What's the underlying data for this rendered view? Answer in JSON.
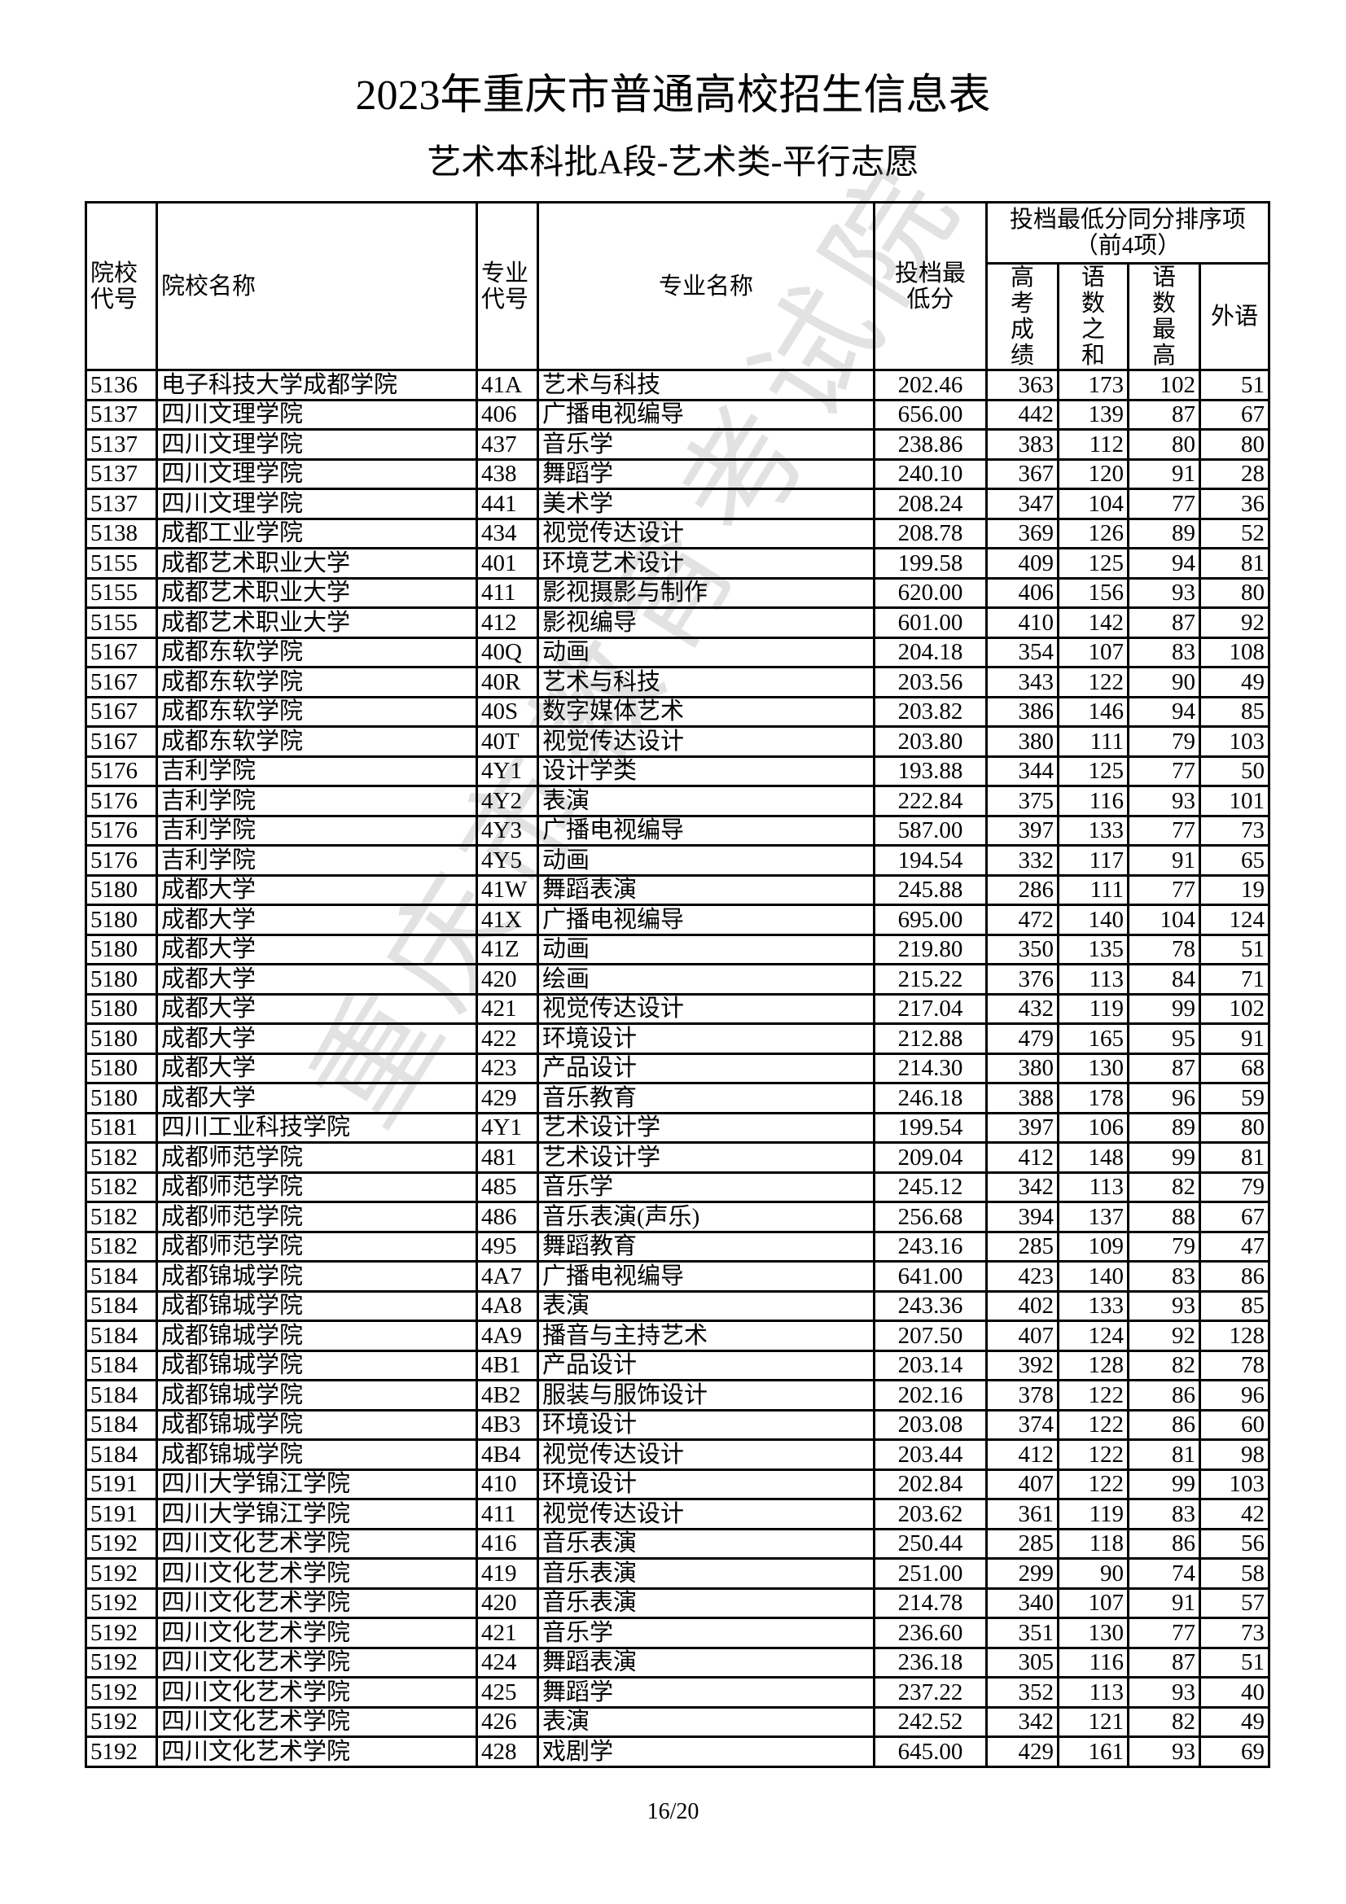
{
  "title": "2023年重庆市普通高校招生信息表",
  "subtitle": "艺术本科批A段-艺术类-平行志愿",
  "watermark": "重庆市教育考试院",
  "headers": {
    "school_code": "院校代号",
    "school_name": "院校名称",
    "major_code": "专业代号",
    "major_name": "专业名称",
    "min_score": "投档最低分",
    "tiebreak_group": "投档最低分同分排序项",
    "tiebreak_note": "（前4项）",
    "gaokao": "高考成绩",
    "chn_math_sum": "语数之和",
    "chn_math_max": "语数最高",
    "foreign": "外语"
  },
  "rows": [
    [
      "5136",
      "电子科技大学成都学院",
      "41A",
      "艺术与科技",
      "202.46",
      "363",
      "173",
      "102",
      "51"
    ],
    [
      "5137",
      "四川文理学院",
      "406",
      "广播电视编导",
      "656.00",
      "442",
      "139",
      "87",
      "67"
    ],
    [
      "5137",
      "四川文理学院",
      "437",
      "音乐学",
      "238.86",
      "383",
      "112",
      "80",
      "80"
    ],
    [
      "5137",
      "四川文理学院",
      "438",
      "舞蹈学",
      "240.10",
      "367",
      "120",
      "91",
      "28"
    ],
    [
      "5137",
      "四川文理学院",
      "441",
      "美术学",
      "208.24",
      "347",
      "104",
      "77",
      "36"
    ],
    [
      "5138",
      "成都工业学院",
      "434",
      "视觉传达设计",
      "208.78",
      "369",
      "126",
      "89",
      "52"
    ],
    [
      "5155",
      "成都艺术职业大学",
      "401",
      "环境艺术设计",
      "199.58",
      "409",
      "125",
      "94",
      "81"
    ],
    [
      "5155",
      "成都艺术职业大学",
      "411",
      "影视摄影与制作",
      "620.00",
      "406",
      "156",
      "93",
      "80"
    ],
    [
      "5155",
      "成都艺术职业大学",
      "412",
      "影视编导",
      "601.00",
      "410",
      "142",
      "87",
      "92"
    ],
    [
      "5167",
      "成都东软学院",
      "40Q",
      "动画",
      "204.18",
      "354",
      "107",
      "83",
      "108"
    ],
    [
      "5167",
      "成都东软学院",
      "40R",
      "艺术与科技",
      "203.56",
      "343",
      "122",
      "90",
      "49"
    ],
    [
      "5167",
      "成都东软学院",
      "40S",
      "数字媒体艺术",
      "203.82",
      "386",
      "146",
      "94",
      "85"
    ],
    [
      "5167",
      "成都东软学院",
      "40T",
      "视觉传达设计",
      "203.80",
      "380",
      "111",
      "79",
      "103"
    ],
    [
      "5176",
      "吉利学院",
      "4Y1",
      "设计学类",
      "193.88",
      "344",
      "125",
      "77",
      "50"
    ],
    [
      "5176",
      "吉利学院",
      "4Y2",
      "表演",
      "222.84",
      "375",
      "116",
      "93",
      "101"
    ],
    [
      "5176",
      "吉利学院",
      "4Y3",
      "广播电视编导",
      "587.00",
      "397",
      "133",
      "77",
      "73"
    ],
    [
      "5176",
      "吉利学院",
      "4Y5",
      "动画",
      "194.54",
      "332",
      "117",
      "91",
      "65"
    ],
    [
      "5180",
      "成都大学",
      "41W",
      "舞蹈表演",
      "245.88",
      "286",
      "111",
      "77",
      "19"
    ],
    [
      "5180",
      "成都大学",
      "41X",
      "广播电视编导",
      "695.00",
      "472",
      "140",
      "104",
      "124"
    ],
    [
      "5180",
      "成都大学",
      "41Z",
      "动画",
      "219.80",
      "350",
      "135",
      "78",
      "51"
    ],
    [
      "5180",
      "成都大学",
      "420",
      "绘画",
      "215.22",
      "376",
      "113",
      "84",
      "71"
    ],
    [
      "5180",
      "成都大学",
      "421",
      "视觉传达设计",
      "217.04",
      "432",
      "119",
      "99",
      "102"
    ],
    [
      "5180",
      "成都大学",
      "422",
      "环境设计",
      "212.88",
      "479",
      "165",
      "95",
      "91"
    ],
    [
      "5180",
      "成都大学",
      "423",
      "产品设计",
      "214.30",
      "380",
      "130",
      "87",
      "68"
    ],
    [
      "5180",
      "成都大学",
      "429",
      "音乐教育",
      "246.18",
      "388",
      "178",
      "96",
      "59"
    ],
    [
      "5181",
      "四川工业科技学院",
      "4Y1",
      "艺术设计学",
      "199.54",
      "397",
      "106",
      "89",
      "80"
    ],
    [
      "5182",
      "成都师范学院",
      "481",
      "艺术设计学",
      "209.04",
      "412",
      "148",
      "99",
      "81"
    ],
    [
      "5182",
      "成都师范学院",
      "485",
      "音乐学",
      "245.12",
      "342",
      "113",
      "82",
      "79"
    ],
    [
      "5182",
      "成都师范学院",
      "486",
      "音乐表演(声乐)",
      "256.68",
      "394",
      "137",
      "88",
      "67"
    ],
    [
      "5182",
      "成都师范学院",
      "495",
      "舞蹈教育",
      "243.16",
      "285",
      "109",
      "79",
      "47"
    ],
    [
      "5184",
      "成都锦城学院",
      "4A7",
      "广播电视编导",
      "641.00",
      "423",
      "140",
      "83",
      "86"
    ],
    [
      "5184",
      "成都锦城学院",
      "4A8",
      "表演",
      "243.36",
      "402",
      "133",
      "93",
      "85"
    ],
    [
      "5184",
      "成都锦城学院",
      "4A9",
      "播音与主持艺术",
      "207.50",
      "407",
      "124",
      "92",
      "128"
    ],
    [
      "5184",
      "成都锦城学院",
      "4B1",
      "产品设计",
      "203.14",
      "392",
      "128",
      "82",
      "78"
    ],
    [
      "5184",
      "成都锦城学院",
      "4B2",
      "服装与服饰设计",
      "202.16",
      "378",
      "122",
      "86",
      "96"
    ],
    [
      "5184",
      "成都锦城学院",
      "4B3",
      "环境设计",
      "203.08",
      "374",
      "122",
      "86",
      "60"
    ],
    [
      "5184",
      "成都锦城学院",
      "4B4",
      "视觉传达设计",
      "203.44",
      "412",
      "122",
      "81",
      "98"
    ],
    [
      "5191",
      "四川大学锦江学院",
      "410",
      "环境设计",
      "202.84",
      "407",
      "122",
      "99",
      "103"
    ],
    [
      "5191",
      "四川大学锦江学院",
      "411",
      "视觉传达设计",
      "203.62",
      "361",
      "119",
      "83",
      "42"
    ],
    [
      "5192",
      "四川文化艺术学院",
      "416",
      "音乐表演",
      "250.44",
      "285",
      "118",
      "86",
      "56"
    ],
    [
      "5192",
      "四川文化艺术学院",
      "419",
      "音乐表演",
      "251.00",
      "299",
      "90",
      "74",
      "58"
    ],
    [
      "5192",
      "四川文化艺术学院",
      "420",
      "音乐表演",
      "214.78",
      "340",
      "107",
      "91",
      "57"
    ],
    [
      "5192",
      "四川文化艺术学院",
      "421",
      "音乐学",
      "236.60",
      "351",
      "130",
      "77",
      "73"
    ],
    [
      "5192",
      "四川文化艺术学院",
      "424",
      "舞蹈表演",
      "236.18",
      "305",
      "116",
      "87",
      "51"
    ],
    [
      "5192",
      "四川文化艺术学院",
      "425",
      "舞蹈学",
      "237.22",
      "352",
      "113",
      "93",
      "40"
    ],
    [
      "5192",
      "四川文化艺术学院",
      "426",
      "表演",
      "242.52",
      "342",
      "121",
      "82",
      "49"
    ],
    [
      "5192",
      "四川文化艺术学院",
      "428",
      "戏剧学",
      "645.00",
      "429",
      "161",
      "93",
      "69"
    ]
  ],
  "page_number": "16/20"
}
